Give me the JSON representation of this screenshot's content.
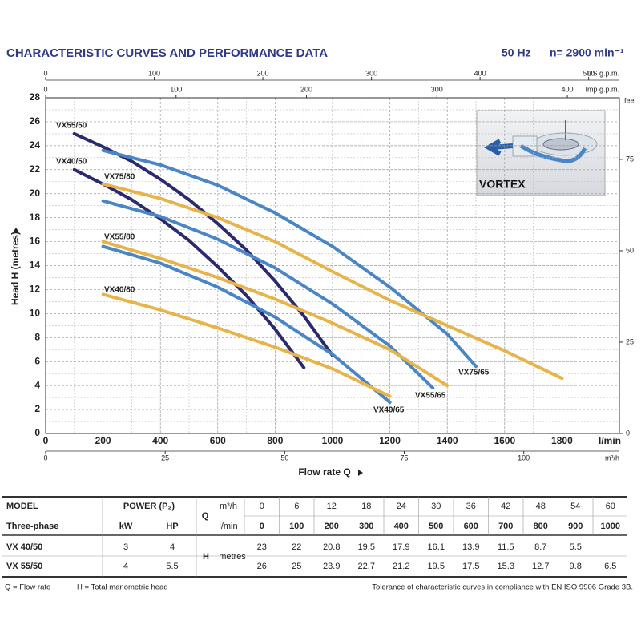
{
  "header": {
    "title": "CHARACTERISTIC CURVES AND PERFORMANCE DATA",
    "frequency": "50 Hz",
    "speed": "n= 2900 min⁻¹"
  },
  "chart_data": {
    "type": "line",
    "xlabel": "Flow rate Q",
    "xunit": "l/min",
    "ylabel": "Head H (metres)",
    "xlim": [
      0,
      2000
    ],
    "xticks": [
      0,
      200,
      400,
      600,
      800,
      1000,
      1200,
      1400,
      1600,
      1800
    ],
    "ylim": [
      0,
      28
    ],
    "yticks": [
      0,
      2,
      4,
      6,
      8,
      10,
      12,
      14,
      16,
      18,
      20,
      22,
      24,
      26,
      28
    ],
    "y2label": "fee",
    "y2lim": [
      0,
      91.86
    ],
    "y2ticks": [
      0,
      25,
      50,
      75
    ],
    "x2": {
      "label": "US g.p.m.",
      "lim": [
        0,
        528.3
      ],
      "ticks": [
        0,
        100,
        200,
        300,
        400,
        500
      ]
    },
    "x3": {
      "label": "Imp g.p.m.",
      "lim": [
        0,
        439.9
      ],
      "ticks": [
        0,
        100,
        200,
        300,
        400
      ]
    },
    "x4": {
      "label": "m³/h",
      "lim": [
        0,
        120
      ],
      "ticks": [
        0,
        25,
        50,
        75,
        100
      ]
    },
    "grid": true,
    "illustration_label": "VORTEX",
    "series": [
      {
        "name": "VX55/50",
        "color": "#2b2a6e",
        "x": [
          100,
          200,
          300,
          400,
          500,
          600,
          700,
          800,
          900,
          1000
        ],
        "values": [
          25,
          23.9,
          22.7,
          21.2,
          19.5,
          17.5,
          15.3,
          12.7,
          9.8,
          6.5
        ]
      },
      {
        "name": "VX40/50",
        "color": "#2b2a6e",
        "x": [
          100,
          200,
          300,
          400,
          500,
          600,
          700,
          800,
          900
        ],
        "values": [
          22,
          20.8,
          19.5,
          17.9,
          16.1,
          13.9,
          11.5,
          8.7,
          5.5
        ]
      },
      {
        "name": "VX75/65",
        "color": "#4a86c5",
        "x": [
          200,
          400,
          600,
          800,
          1000,
          1200,
          1400,
          1500
        ],
        "values": [
          23.6,
          22.4,
          20.7,
          18.4,
          15.6,
          12.2,
          8.3,
          5.6
        ]
      },
      {
        "name": "VX55/65",
        "color": "#4a86c5",
        "x": [
          200,
          400,
          600,
          800,
          1000,
          1200,
          1350
        ],
        "values": [
          19.4,
          18.1,
          16.2,
          13.8,
          10.8,
          7.3,
          3.8
        ]
      },
      {
        "name": "VX40/65",
        "color": "#4a86c5",
        "x": [
          200,
          400,
          600,
          800,
          1000,
          1200
        ],
        "values": [
          15.6,
          14.2,
          12.2,
          9.7,
          6.6,
          2.6
        ]
      },
      {
        "name": "VX75/80",
        "color": "#e8b44a",
        "x": [
          200,
          400,
          600,
          800,
          1000,
          1200,
          1400,
          1600,
          1800
        ],
        "values": [
          20.8,
          19.6,
          18,
          16,
          13.5,
          11.1,
          9,
          6.9,
          4.6
        ]
      },
      {
        "name": "VX55/80",
        "color": "#e8b44a",
        "x": [
          200,
          400,
          600,
          800,
          1000,
          1200,
          1400
        ],
        "values": [
          16,
          14.6,
          13,
          11.2,
          9.2,
          7,
          4
        ]
      },
      {
        "name": "VX40/80",
        "color": "#e8b44a",
        "x": [
          200,
          400,
          600,
          800,
          1000,
          1200
        ],
        "values": [
          11.6,
          10.3,
          8.8,
          7.2,
          5.4,
          3.1
        ]
      }
    ]
  },
  "table": {
    "model_header": "MODEL",
    "power_header": "POWER (P₂)",
    "subheader": "Three-phase",
    "kw": "kW",
    "hp": "HP",
    "q_label": "Q",
    "m3h_unit": "m³/h",
    "lmin_unit": "l/min",
    "h_label": "H",
    "h_unit": "metres",
    "m3h": [
      0,
      6,
      12,
      18,
      24,
      30,
      36,
      42,
      48,
      54,
      60
    ],
    "lmin": [
      0,
      100,
      200,
      300,
      400,
      500,
      600,
      700,
      800,
      900,
      1000
    ],
    "rows": [
      {
        "model": "VX 40/50",
        "kw": 3,
        "hp": 4,
        "head": [
          23,
          22,
          20.8,
          19.5,
          17.9,
          16.1,
          13.9,
          11.5,
          8.7,
          5.5,
          null
        ]
      },
      {
        "model": "VX 55/50",
        "kw": 4,
        "hp": 5.5,
        "head": [
          26,
          25,
          23.9,
          22.7,
          21.2,
          19.5,
          17.5,
          15.3,
          12.7,
          9.8,
          6.5
        ]
      }
    ]
  },
  "footer": {
    "q_note": "Q = Flow rate",
    "h_note": "H = Total manometric head",
    "tolerance": "Tolerance of characteristic curves in compliance with EN ISO 9906 Grade 3B."
  }
}
